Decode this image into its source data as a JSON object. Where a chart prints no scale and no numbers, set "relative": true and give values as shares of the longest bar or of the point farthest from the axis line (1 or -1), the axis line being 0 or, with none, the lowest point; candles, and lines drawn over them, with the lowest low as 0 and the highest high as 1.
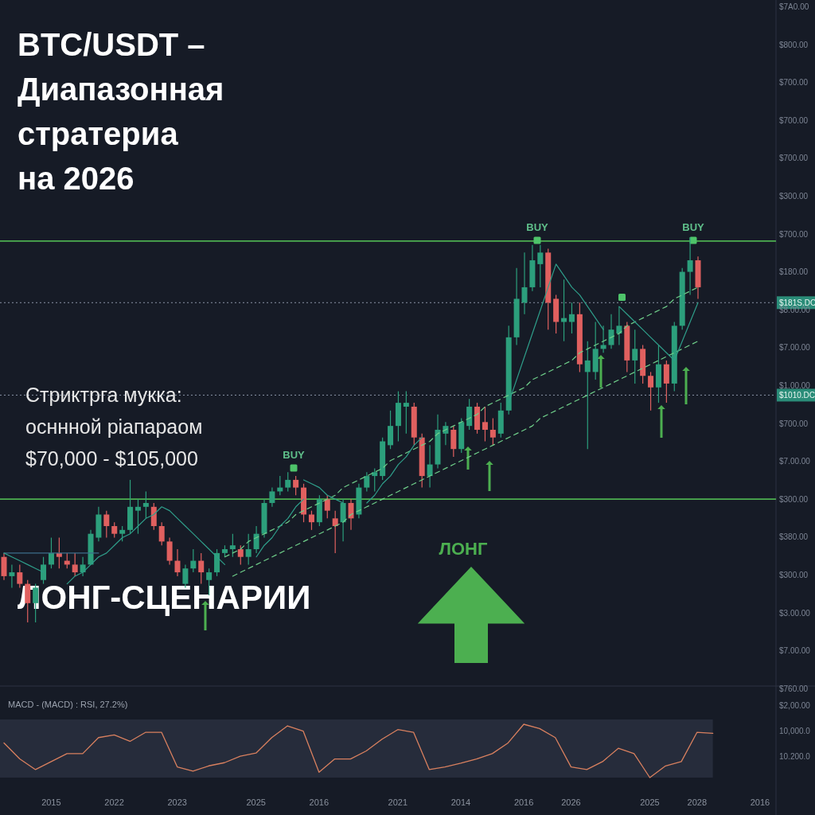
{
  "chart_data": [
    {
      "type": "candlestick",
      "title": "BTC/USDT – Диапазонная стратериа на 2026",
      "subtitle": "Стриктрга мукка:\nосннной ріапараом\n$70,000 - $105,000",
      "relative": true,
      "tick_labels": false,
      "categories": [
        null,
        null,
        null,
        null,
        null,
        null,
        null,
        null,
        null,
        null,
        null,
        null,
        null,
        null,
        null,
        null,
        null,
        null,
        null,
        null,
        null,
        null,
        null,
        null,
        null,
        null,
        null,
        null,
        null,
        null,
        null,
        null,
        null,
        null,
        null,
        null,
        null,
        null,
        null,
        null,
        null,
        null,
        null,
        null,
        null,
        null,
        null,
        null,
        null,
        null,
        null,
        null,
        null,
        null,
        null,
        null,
        null,
        null,
        null,
        null,
        null,
        null,
        null,
        null,
        null,
        null,
        null,
        null,
        null,
        null,
        null,
        null,
        null,
        null,
        null,
        null,
        null,
        null,
        null,
        null,
        null,
        null,
        null,
        null,
        null,
        null,
        null,
        null,
        null
      ],
      "colors": [
        "#e0605f",
        "#2c9f7c",
        "#e0605f",
        "#e0605f",
        "#2c9f7c",
        "#2c9f7c",
        "#2c9f7c",
        "#e0605f",
        "#e0605f",
        "#e0605f",
        "#2c9f7c",
        "#2c9f7c",
        "#2c9f7c",
        "#e0605f",
        "#e0605f",
        "#2c9f7c",
        "#2c9f7c",
        "#2c9f7c",
        "#2c9f7c",
        "#e0605f",
        "#e0605f",
        "#e0605f",
        "#e0605f",
        "#2c9f7c",
        "#2c9f7c",
        "#e0605f",
        "#2c9f7c",
        "#2c9f7c",
        "#2c9f7c",
        "#2c9f7c",
        "#e0605f",
        "#2c9f7c",
        "#2c9f7c",
        "#2c9f7c",
        "#2c9f7c",
        "#2c9f7c",
        "#2c9f7c",
        "#e0605f",
        "#e0605f",
        "#e0605f",
        "#2c9f7c",
        "#e0605f",
        "#e0605f",
        "#2c9f7c",
        "#e0605f",
        "#2c9f7c",
        "#2c9f7c",
        "#2c9f7c",
        "#2c9f7c",
        "#2c9f7c",
        "#2c9f7c",
        "#2c9f7c",
        "#e0605f",
        "#e0605f",
        "#2c9f7c",
        "#2c9f7c",
        "#2c9f7c",
        "#e0605f",
        "#2c9f7c",
        "#2c9f7c",
        "#e0605f",
        "#e0605f",
        "#e0605f",
        "#2c9f7c",
        "#2c9f7c",
        "#2c9f7c",
        "#2c9f7c",
        "#2c9f7c",
        "#2c9f7c",
        "#e0605f",
        "#e0605f",
        "#2c9f7c",
        "#2c9f7c",
        "#e0605f",
        "#2c9f7c",
        "#2c9f7c",
        "#2c9f7c",
        "#2c9f7c",
        "#2c9f7c",
        "#e0605f",
        "#2c9f7c",
        "#e0605f",
        "#e0605f",
        "#2c9f7c",
        "#e0605f",
        "#2c9f7c",
        "#2c9f7c",
        "#2c9f7c",
        "#e0605f"
      ],
      "ohlc": [
        [
          0.17,
          0.18,
          0.11,
          0.12
        ],
        [
          0.12,
          0.15,
          0.09,
          0.13
        ],
        [
          0.13,
          0.15,
          0.09,
          0.1
        ],
        [
          0.1,
          0.11,
          0.0,
          0.05
        ],
        [
          0.05,
          0.1,
          0,
          0.09
        ],
        [
          0.11,
          0.17,
          0.1,
          0.15
        ],
        [
          0.15,
          0.22,
          0.14,
          0.18
        ],
        [
          0.18,
          0.22,
          0.14,
          0.17
        ],
        [
          0.16,
          0.18,
          0.14,
          0.15
        ],
        [
          0.15,
          0.18,
          0.12,
          0.13
        ],
        [
          0.13,
          0.17,
          0.12,
          0.15
        ],
        [
          0.15,
          0.24,
          0.15,
          0.23
        ],
        [
          0.22,
          0.3,
          0.21,
          0.28
        ],
        [
          0.28,
          0.29,
          0.22,
          0.25
        ],
        [
          0.25,
          0.26,
          0.22,
          0.23
        ],
        [
          0.23,
          0.25,
          0.21,
          0.24
        ],
        [
          0.24,
          0.37,
          0.23,
          0.3
        ],
        [
          0.29,
          0.32,
          0.23,
          0.3
        ],
        [
          0.3,
          0.34,
          0.27,
          0.31
        ],
        [
          0.3,
          0.31,
          0.24,
          0.25
        ],
        [
          0.25,
          0.26,
          0.2,
          0.21
        ],
        [
          0.21,
          0.22,
          0.15,
          0.16
        ],
        [
          0.16,
          0.19,
          0.12,
          0.13
        ],
        [
          0.1,
          0.15,
          0.09,
          0.14
        ],
        [
          0.14,
          0.19,
          0.13,
          0.16
        ],
        [
          0.16,
          0.18,
          0.1,
          0.13
        ],
        [
          0.11,
          0.14,
          0.07,
          0.13
        ],
        [
          0.13,
          0.19,
          0.12,
          0.18
        ],
        [
          0.18,
          0.2,
          0.17,
          0.19
        ],
        [
          0.19,
          0.23,
          0.17,
          0.2
        ],
        [
          0.19,
          0.2,
          0.15,
          0.17
        ],
        [
          0.17,
          0.23,
          0.15,
          0.19
        ],
        [
          0.19,
          0.25,
          0.18,
          0.23
        ],
        [
          0.23,
          0.32,
          0.22,
          0.31
        ],
        [
          0.31,
          0.35,
          0.3,
          0.34
        ],
        [
          0.34,
          0.38,
          0.33,
          0.35
        ],
        [
          0.35,
          0.39,
          0.34,
          0.37
        ],
        [
          0.37,
          0.38,
          0.33,
          0.35
        ],
        [
          0.35,
          0.36,
          0.26,
          0.28
        ],
        [
          0.28,
          0.29,
          0.24,
          0.26
        ],
        [
          0.26,
          0.33,
          0.25,
          0.32
        ],
        [
          0.32,
          0.33,
          0.27,
          0.29
        ],
        [
          0.27,
          0.29,
          0.18,
          0.25
        ],
        [
          0.26,
          0.32,
          0.21,
          0.31
        ],
        [
          0.31,
          0.32,
          0.24,
          0.27
        ],
        [
          0.28,
          0.36,
          0.27,
          0.35
        ],
        [
          0.35,
          0.39,
          0.34,
          0.38
        ],
        [
          0.38,
          0.4,
          0.34,
          0.39
        ],
        [
          0.38,
          0.48,
          0.37,
          0.47
        ],
        [
          0.46,
          0.55,
          0.45,
          0.51
        ],
        [
          0.51,
          0.6,
          0.47,
          0.57
        ],
        [
          0.56,
          0.6,
          0.49,
          0.57
        ],
        [
          0.56,
          0.57,
          0.46,
          0.48
        ],
        [
          0.48,
          0.49,
          0.35,
          0.38
        ],
        [
          0.38,
          0.46,
          0.35,
          0.41
        ],
        [
          0.41,
          0.54,
          0.4,
          0.5
        ],
        [
          0.49,
          0.52,
          0.46,
          0.51
        ],
        [
          0.5,
          0.51,
          0.43,
          0.45
        ],
        [
          0.45,
          0.53,
          0.44,
          0.52
        ],
        [
          0.51,
          0.58,
          0.5,
          0.56
        ],
        [
          0.56,
          0.57,
          0.49,
          0.5
        ],
        [
          0.52,
          0.56,
          0.47,
          0.5
        ],
        [
          0.5,
          0.53,
          0.46,
          0.48
        ],
        [
          0.49,
          0.57,
          0.48,
          0.55
        ],
        [
          0.55,
          0.77,
          0.54,
          0.74
        ],
        [
          0.74,
          0.92,
          0.72,
          0.84
        ],
        [
          0.83,
          0.96,
          0.8,
          0.87
        ],
        [
          0.87,
          0.98,
          0.86,
          0.94
        ],
        [
          0.93,
          0.98,
          0.87,
          0.96
        ],
        [
          0.96,
          0.97,
          0.76,
          0.83
        ],
        [
          0.84,
          0.85,
          0.75,
          0.78
        ],
        [
          0.78,
          0.89,
          0.73,
          0.79
        ],
        [
          0.78,
          0.83,
          0.75,
          0.8
        ],
        [
          0.8,
          0.83,
          0.65,
          0.67
        ],
        [
          0.65,
          0.73,
          0.45,
          0.68
        ],
        [
          0.65,
          0.78,
          0.63,
          0.71
        ],
        [
          0.71,
          0.77,
          0.7,
          0.72
        ],
        [
          0.72,
          0.8,
          0.71,
          0.76
        ],
        [
          0.75,
          0.82,
          0.72,
          0.77
        ],
        [
          0.77,
          0.78,
          0.65,
          0.68
        ],
        [
          0.68,
          0.76,
          0.62,
          0.71
        ],
        [
          0.71,
          0.72,
          0.62,
          0.64
        ],
        [
          0.64,
          0.65,
          0.55,
          0.61
        ],
        [
          0.61,
          0.72,
          0.57,
          0.67
        ],
        [
          0.67,
          0.68,
          0.57,
          0.62
        ],
        [
          0.62,
          0.78,
          0.6,
          0.77
        ],
        [
          0.77,
          0.92,
          0.76,
          0.91
        ],
        [
          0.91,
          1.0,
          0.85,
          0.94
        ],
        [
          0.94,
          0.95,
          0.84,
          0.87
        ]
      ],
      "series": [
        {
          "type": "line",
          "color": "#6fcf8a",
          "line_style": "dashed",
          "values": [
            null,
            null,
            null,
            null,
            null,
            null,
            null,
            null,
            null,
            null,
            null,
            null,
            null,
            null,
            null,
            null,
            null,
            null,
            null,
            null,
            null,
            null,
            null,
            null,
            null,
            null,
            null,
            null,
            0.17,
            0.18,
            0.19,
            0.21,
            0.22,
            0.23,
            0.24,
            0.25,
            0.26,
            0.28,
            0.29,
            0.3,
            0.31,
            0.32,
            0.33,
            0.35,
            0.36,
            0.37,
            0.38,
            0.39,
            0.4,
            0.42,
            0.43,
            0.44,
            0.45,
            0.46,
            0.47,
            0.49,
            0.5,
            0.51,
            0.52,
            0.53,
            0.54,
            0.56,
            0.57,
            0.58,
            0.59,
            0.6,
            0.61,
            0.63,
            0.64,
            0.65,
            0.66,
            0.67,
            0.68,
            0.7,
            0.71,
            0.72,
            0.73,
            0.74,
            0.75,
            0.77,
            0.78,
            0.79,
            0.8,
            0.81,
            0.82,
            0.84,
            0.85,
            0.86,
            0.87
          ]
        },
        {
          "type": "line",
          "color": "#6fcf8a",
          "line_style": "dashed",
          "values": [
            null,
            null,
            null,
            null,
            null,
            null,
            null,
            null,
            null,
            null,
            null,
            null,
            null,
            null,
            null,
            null,
            null,
            null,
            null,
            null,
            null,
            null,
            null,
            null,
            null,
            null,
            null,
            null,
            null,
            0.12,
            0.13,
            0.14,
            0.15,
            0.16,
            0.17,
            0.18,
            0.19,
            0.2,
            0.21,
            0.22,
            0.23,
            0.24,
            0.25,
            0.26,
            0.28,
            0.29,
            0.3,
            0.31,
            0.32,
            0.33,
            0.34,
            0.35,
            0.36,
            0.37,
            0.38,
            0.39,
            0.4,
            0.41,
            0.42,
            0.43,
            0.44,
            0.45,
            0.46,
            0.47,
            0.48,
            0.49,
            0.5,
            0.51,
            0.53,
            0.54,
            0.55,
            0.56,
            0.57,
            0.58,
            0.59,
            0.6,
            0.61,
            0.62,
            0.63,
            0.64,
            0.65,
            0.66,
            0.67,
            0.68,
            0.69,
            0.7,
            0.71,
            0.72,
            0.73
          ]
        },
        {
          "type": "line",
          "color": "#3d6e8a",
          "values": [
            0.18,
            0.18,
            0.18,
            0.18,
            0.18,
            0.18,
            0.18,
            0.18,
            0.18,
            0.18,
            0.18,
            0.18,
            0.18,
            null,
            null,
            null,
            null,
            null,
            null,
            null,
            null,
            null,
            null,
            null,
            null,
            null,
            null,
            null,
            null,
            null,
            null,
            null,
            null,
            null,
            null,
            null,
            null,
            null,
            null,
            null,
            null,
            null,
            null,
            null,
            null,
            null,
            null,
            null,
            null,
            null,
            null,
            null,
            null,
            null,
            null,
            null,
            null,
            null,
            null,
            null,
            null,
            null,
            null,
            null,
            null,
            null,
            null,
            null,
            null,
            null,
            null,
            null,
            null,
            null,
            null,
            null,
            null,
            null,
            null,
            null,
            null,
            null,
            null,
            null,
            null,
            null,
            null,
            null,
            null
          ]
        },
        {
          "type": "line",
          "color": "#2f9e8a",
          "values": [
            0.18,
            0.17,
            0.16,
            0.15,
            0.14,
            0.13,
            null,
            null,
            0.1,
            0.12,
            0.13,
            0.15,
            0.17,
            0.18,
            0.2,
            0.22,
            0.23,
            0.25,
            0.27,
            0.28,
            0.3,
            0.29,
            0.27,
            0.25,
            0.23,
            0.21,
            0.19,
            0.17,
            0.15,
            null,
            null,
            null,
            0.17,
            0.2,
            0.22,
            0.25,
            0.27,
            0.3,
            0.32,
            null,
            null,
            null,
            null,
            null,
            null,
            null,
            0.31,
            0.33,
            0.36,
            0.38,
            0.41,
            0.43,
            0.46,
            0.48,
            null,
            null,
            null,
            null,
            null,
            null,
            null,
            null,
            null,
            null,
            0.57,
            0.63,
            0.69,
            0.75,
            0.81,
            0.87,
            0.93,
            0.9,
            0.87,
            0.85,
            0.82,
            0.79,
            0.76,
            null,
            0.82,
            0.8,
            0.78,
            0.76,
            0.74,
            0.72,
            0.7,
            0.68,
            0.73,
            0.78,
            0.83
          ]
        },
        {
          "type": "line",
          "color": "#2f9e8a",
          "values": [
            null,
            null,
            null,
            null,
            null,
            null,
            null,
            null,
            null,
            null,
            null,
            null,
            null,
            null,
            null,
            null,
            null,
            null,
            null,
            null,
            null,
            null,
            null,
            null,
            null,
            null,
            null,
            null,
            null,
            null,
            null,
            null,
            null,
            null,
            null,
            null,
            null,
            null,
            0.37,
            0.36,
            0.35,
            0.33,
            0.32,
            0.31,
            null,
            null,
            null,
            null,
            null,
            null,
            null,
            null,
            null,
            null,
            null,
            null,
            null,
            null,
            null,
            null,
            null,
            null,
            null,
            null,
            null,
            null,
            null,
            null,
            null,
            null,
            null,
            null,
            null,
            null,
            null,
            null,
            null,
            null,
            null,
            null,
            null,
            null,
            null,
            null,
            null,
            null,
            null,
            null,
            null
          ]
        }
      ],
      "ref_lines": [
        {
          "axis": "y",
          "value": 0.99,
          "color": "#4caf50"
        },
        {
          "axis": "y",
          "value": 0.32,
          "color": "#4caf50"
        },
        {
          "axis": "y",
          "value": 0.83,
          "label": "$181S.DC",
          "color": "#8a93a6",
          "line_style": "dotted"
        },
        {
          "axis": "y",
          "value": 0.59,
          "label": "$1010.DC",
          "color": "#8a93a6",
          "line_style": "dotted"
        }
      ],
      "annotations": [
        "ЛОНГ-СЦЕНАРИИ",
        "ЛОНГ",
        "BUY",
        "BUY",
        "BUY",
        "$7A0.00",
        "$800.00",
        "$700.00",
        "$700.00",
        "$700.00",
        "$300.00",
        "$700.00",
        "$180.00",
        "$8.00.00",
        "$7.00.00",
        "$1.00.00",
        "$700.00",
        "$7.00.00",
        "$300.00",
        "$380.00",
        "$300.00",
        "$3.00.00",
        "$7.00.00",
        "$760.00"
      ]
    },
    {
      "type": "line",
      "relative": true,
      "tick_labels": "x",
      "categories": [
        null,
        null,
        null,
        "2015",
        null,
        null,
        null,
        "2022",
        null,
        null,
        null,
        "2023",
        null,
        null,
        null,
        null,
        "2025",
        null,
        null,
        null,
        "2016",
        null,
        null,
        null,
        null,
        "2021",
        null,
        null,
        null,
        "2014",
        null,
        null,
        null,
        "2016",
        null,
        null,
        "2026",
        null,
        null,
        null,
        null,
        "2025",
        null,
        null,
        "2028",
        null,
        null,
        null,
        "2016"
      ],
      "series": [
        {
          "type": "line",
          "color": "#d9805f",
          "values": [
            0.65,
            0.35,
            0.15,
            0.3,
            0.45,
            0.45,
            0.75,
            0.8,
            0.68,
            0.85,
            0.85,
            0.2,
            0.12,
            0.22,
            0.28,
            0.4,
            0.46,
            0.75,
            0.97,
            0.87,
            0.1,
            0.35,
            0.35,
            0.5,
            0.72,
            0.9,
            0.85,
            0.15,
            0.2,
            0.27,
            0.35,
            0.45,
            0.65,
            1.0,
            0.92,
            0.75,
            0.2,
            0.15,
            0.3,
            0.55,
            0.45,
            0,
            0.22,
            0.3,
            0.85,
            0.83,
            null,
            null,
            null
          ]
        }
      ],
      "annotations": [
        "MACD - (MACD) : RSI, 27.2%)",
        "$2,00.00",
        "10,000.0",
        "10.200.0"
      ]
    }
  ]
}
